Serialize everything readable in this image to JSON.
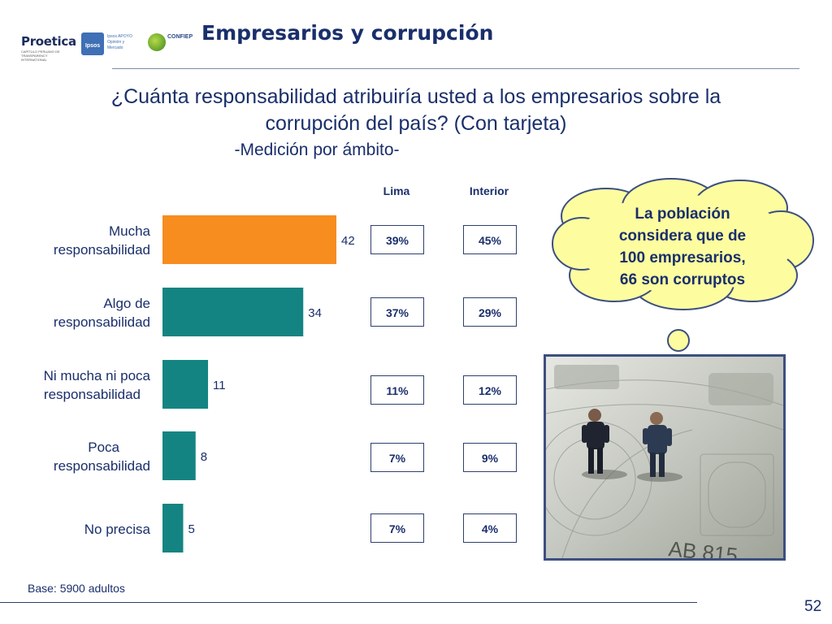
{
  "header": {
    "logos": {
      "proetica": {
        "text": "Proetica",
        "subtitle": "CAPÍTULO PERUANO DE TRANSPARENCY INTERNATIONAL"
      },
      "ipsos": {
        "text": "Ipsos",
        "subtitle": "Ipsos APOYO Opinión y Mercado"
      },
      "confiep": {
        "text": "CONFIEP"
      }
    },
    "title": "Empresarios y corrupción"
  },
  "question": {
    "line1": "¿Cuánta responsabilidad atribuiría usted a los empresarios sobre la",
    "line2": "corrupción del país? (Con tarjeta)",
    "subtitle": "-Medición por ámbito-"
  },
  "columns": {
    "lima": "Lima",
    "interior": "Interior"
  },
  "rows": [
    {
      "label_line1": "Mucha",
      "label_line2": "responsabilidad",
      "lima": "39%",
      "interior": "45%"
    },
    {
      "label_line1": "Algo de",
      "label_line2": "responsabilidad",
      "lima": "37%",
      "interior": "29%"
    },
    {
      "label_line1": "Ni mucha ni poca",
      "label_line2": "responsabilidad",
      "lima": "11%",
      "interior": "12%"
    },
    {
      "label_line1": "Poca",
      "label_line2": "responsabilidad",
      "lima": "7%",
      "interior": "9%"
    },
    {
      "label_line1": "No precisa",
      "label_line2": "",
      "lima": "7%",
      "interior": "4%"
    }
  ],
  "chart_data": {
    "type": "bar",
    "orientation": "horizontal",
    "categories": [
      "Mucha responsabilidad",
      "Algo de responsabilidad",
      "Ni mucha ni poca responsabilidad",
      "Poca responsabilidad",
      "No precisa"
    ],
    "values": [
      42,
      34,
      11,
      8,
      5
    ],
    "xlim": [
      0,
      50
    ],
    "colors": [
      "#f78c1f",
      "#148482",
      "#148482",
      "#148482",
      "#148482"
    ],
    "grid": false,
    "legend": "none"
  },
  "callout": {
    "line1": "La población",
    "line2": "considera que de",
    "line3": "100 empresarios,",
    "line4": "66 son corruptos"
  },
  "photo": {
    "banknote_serial": "AB 815"
  },
  "footer": {
    "base_note": "Base: 5900 adultos",
    "page_number": "52"
  },
  "colors": {
    "title": "#1a2f6b",
    "accent_orange": "#f78c1f",
    "teal": "#148482",
    "cloud_fill": "#fdfda0"
  }
}
